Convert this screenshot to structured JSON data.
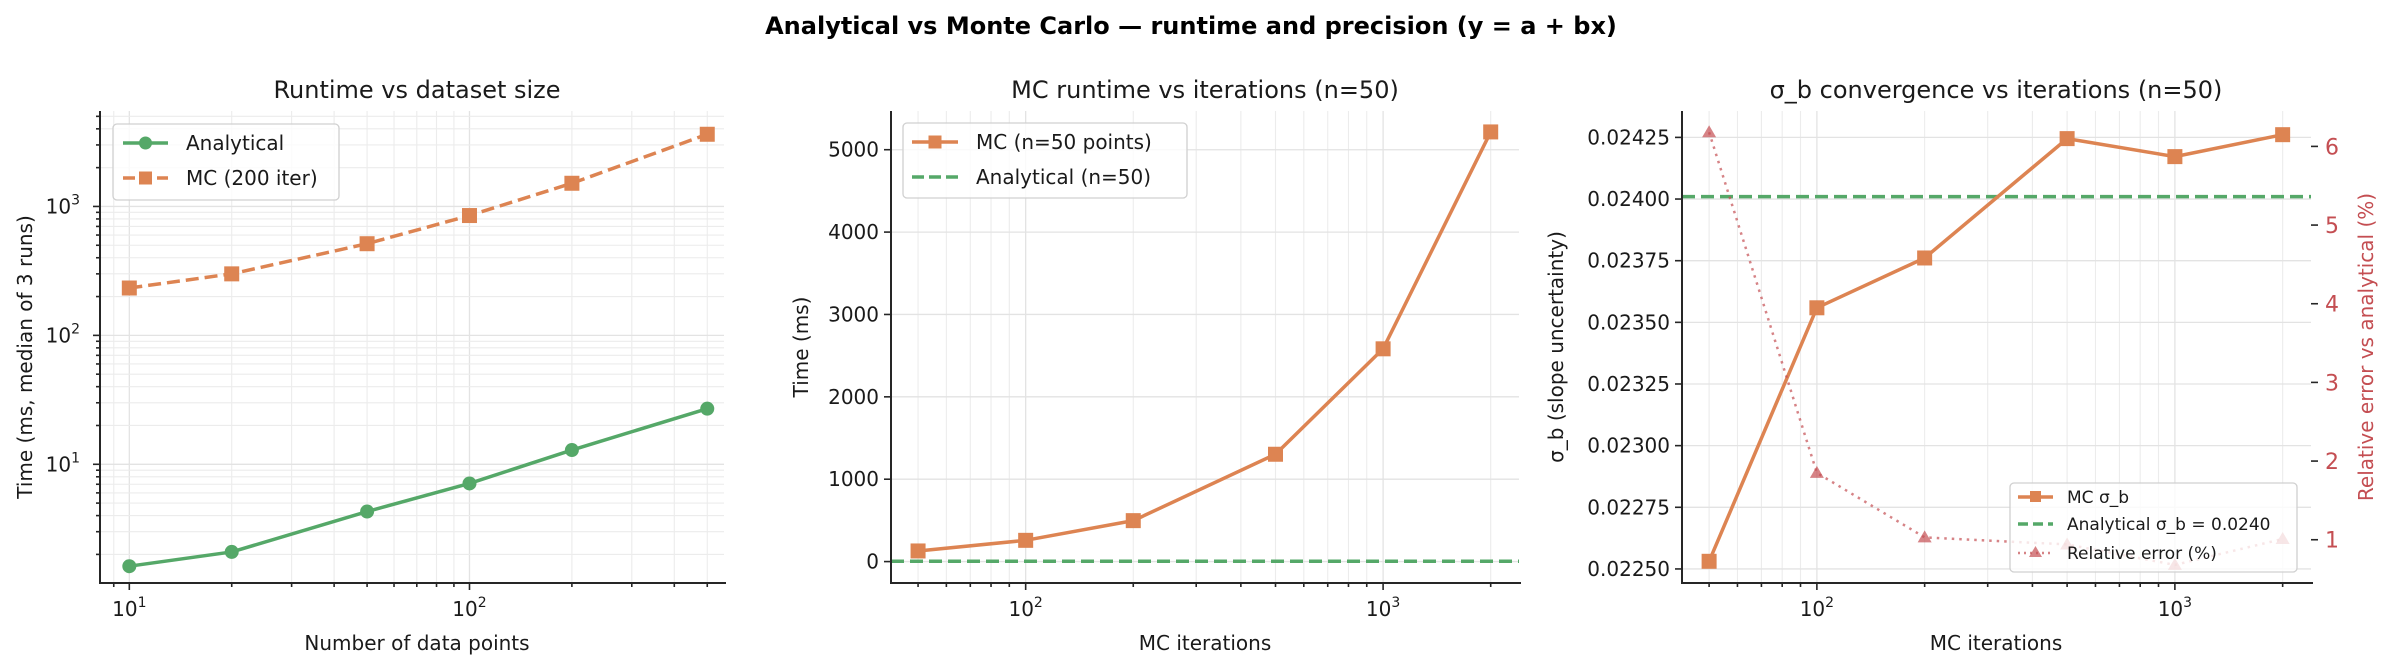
{
  "figure": {
    "suptitle": "Analytical vs Monte Carlo — runtime and precision (y = a + bx)",
    "colors": {
      "analytical": "#55a868",
      "mc": "#dd8452",
      "relerr": "#c44e52",
      "grid": "#e3e3e3",
      "axis": "#262626"
    }
  },
  "chart_data": [
    {
      "type": "line",
      "title": "Runtime vs dataset size",
      "xlabel": "Number of data points",
      "ylabel": "Time (ms, median of 3 runs)",
      "xscale": "log",
      "yscale": "log",
      "xlim": [
        8.2,
        560
      ],
      "ylim": [
        1.2,
        5500
      ],
      "x_ticks": [
        {
          "value": 10,
          "label": "10",
          "exp": "1"
        },
        {
          "value": 100,
          "label": "10",
          "exp": "2"
        }
      ],
      "y_ticks": [
        {
          "value": 10,
          "label": "10",
          "exp": "1"
        },
        {
          "value": 100,
          "label": "10",
          "exp": "2"
        },
        {
          "value": 1000,
          "label": "10",
          "exp": "3"
        }
      ],
      "grid": "both-major-minor",
      "legend_position": "upper left",
      "x": [
        10,
        20,
        50,
        100,
        200,
        500
      ],
      "series": [
        {
          "name": "Analytical",
          "values": [
            1.62,
            2.09,
            4.3,
            7.1,
            12.9,
            27.0
          ],
          "color": "#55a868",
          "marker": "circle",
          "linestyle": "solid"
        },
        {
          "name": "MC (200 iter)",
          "values": [
            233,
            300,
            514,
            850,
            1513,
            3630
          ],
          "color": "#dd8452",
          "marker": "square",
          "linestyle": "dashed"
        }
      ]
    },
    {
      "type": "line",
      "title": "MC runtime vs iterations (n=50)",
      "xlabel": "MC iterations",
      "ylabel": "Time (ms)",
      "xscale": "log",
      "yscale": "linear",
      "xlim": [
        42,
        2400
      ],
      "ylim": [
        -260,
        5470
      ],
      "x_ticks": [
        {
          "value": 100,
          "label": "10",
          "exp": "2"
        },
        {
          "value": 1000,
          "label": "10",
          "exp": "3"
        }
      ],
      "y_ticks": [
        {
          "value": 0,
          "label": "0"
        },
        {
          "value": 1000,
          "label": "1000"
        },
        {
          "value": 2000,
          "label": "2000"
        },
        {
          "value": 3000,
          "label": "3000"
        },
        {
          "value": 4000,
          "label": "4000"
        },
        {
          "value": 5000,
          "label": "5000"
        }
      ],
      "grid": "both",
      "legend_position": "upper left",
      "x": [
        50,
        100,
        200,
        500,
        1000,
        2000
      ],
      "series": [
        {
          "name": "MC (n=50 points)",
          "values": [
            129,
            258,
            497,
            1303,
            2583,
            5216
          ],
          "color": "#dd8452",
          "marker": "square",
          "linestyle": "solid"
        }
      ],
      "hlines": [
        {
          "name": "Analytical (n=50)",
          "value": 4.3,
          "color": "#55a868",
          "linestyle": "dashed"
        }
      ]
    },
    {
      "type": "line",
      "title": "σ_b convergence vs iterations (n=50)",
      "xlabel": "MC iterations",
      "ylabel": "σ_b (slope uncertainty)",
      "ylabel_right": "Relative error vs analytical (%)",
      "xscale": "log",
      "yscale": "linear",
      "xlim": [
        42,
        2400
      ],
      "ylim": [
        0.022443,
        0.024357
      ],
      "ylim_right": [
        0.45,
        6.45
      ],
      "x_ticks": [
        {
          "value": 100,
          "label": "10",
          "exp": "2"
        },
        {
          "value": 1000,
          "label": "10",
          "exp": "3"
        }
      ],
      "y_ticks": [
        {
          "value": 0.0225,
          "label": "0.02250"
        },
        {
          "value": 0.02275,
          "label": "0.02275"
        },
        {
          "value": 0.023,
          "label": "0.02300"
        },
        {
          "value": 0.02325,
          "label": "0.02325"
        },
        {
          "value": 0.0235,
          "label": "0.02350"
        },
        {
          "value": 0.02375,
          "label": "0.02375"
        },
        {
          "value": 0.024,
          "label": "0.02400"
        },
        {
          "value": 0.02425,
          "label": "0.02425"
        }
      ],
      "y_ticks_right": [
        {
          "value": 1,
          "label": "1"
        },
        {
          "value": 2,
          "label": "2"
        },
        {
          "value": 3,
          "label": "3"
        },
        {
          "value": 4,
          "label": "4"
        },
        {
          "value": 5,
          "label": "5"
        },
        {
          "value": 6,
          "label": "6"
        }
      ],
      "grid": "both",
      "legend_position": "lower right",
      "x": [
        50,
        100,
        200,
        500,
        1000,
        2000
      ],
      "series": [
        {
          "name": "MC σ_b",
          "values": [
            0.022531,
            0.023559,
            0.023761,
            0.024245,
            0.024172,
            0.024261
          ],
          "color": "#dd8452",
          "marker": "square",
          "linestyle": "solid",
          "axis": "left"
        },
        {
          "name": "Relative error (%)",
          "values": [
            6.18,
            1.85,
            1.03,
            0.94,
            0.68,
            1.01
          ],
          "color": "#c44e52",
          "marker": "triangle",
          "linestyle": "dotted",
          "axis": "right"
        }
      ],
      "hlines": [
        {
          "name": "Analytical σ_b = 0.0240",
          "value": 0.02401,
          "color": "#55a868",
          "linestyle": "dashed"
        }
      ]
    }
  ]
}
